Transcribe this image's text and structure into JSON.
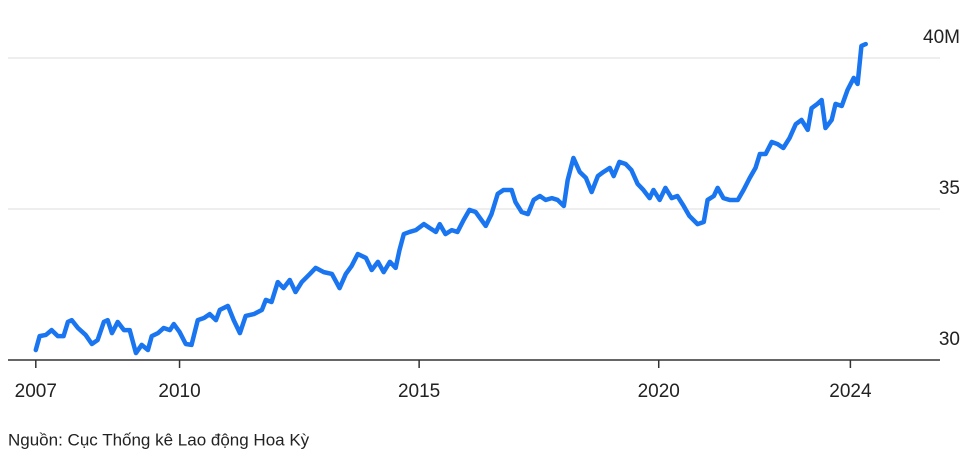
{
  "chart_data": {
    "type": "line",
    "source": "Nguồn: Cục Thống kê Lao động Hoa Kỳ",
    "xlim": [
      2006.42,
      2025.87
    ],
    "xticks": [
      2007,
      2010,
      2015,
      2020,
      2024
    ],
    "ylim": [
      30,
      41
    ],
    "yticks": [
      30,
      35,
      {
        "value": 40,
        "label": "40M"
      }
    ],
    "grid": true,
    "series": [
      {
        "color": "#1a75f0",
        "x": [
          2007.0,
          2007.08,
          2007.21,
          2007.33,
          2007.46,
          2007.58,
          2007.67,
          2007.75,
          2007.88,
          2008.04,
          2008.17,
          2008.29,
          2008.42,
          2008.5,
          2008.59,
          2008.71,
          2008.84,
          2008.96,
          2009.09,
          2009.21,
          2009.34,
          2009.42,
          2009.55,
          2009.67,
          2009.8,
          2009.88,
          2010.0,
          2010.13,
          2010.25,
          2010.38,
          2010.51,
          2010.63,
          2010.76,
          2010.84,
          2011.01,
          2011.13,
          2011.26,
          2011.38,
          2011.55,
          2011.72,
          2011.8,
          2011.92,
          2012.05,
          2012.17,
          2012.3,
          2012.42,
          2012.55,
          2012.72,
          2012.84,
          2013.01,
          2013.18,
          2013.34,
          2013.47,
          2013.59,
          2013.72,
          2013.89,
          2014.01,
          2014.14,
          2014.26,
          2014.39,
          2014.51,
          2014.59,
          2014.68,
          2014.8,
          2014.93,
          2015.1,
          2015.22,
          2015.35,
          2015.43,
          2015.55,
          2015.68,
          2015.8,
          2015.93,
          2016.05,
          2016.18,
          2016.39,
          2016.51,
          2016.64,
          2016.76,
          2016.93,
          2017.01,
          2017.14,
          2017.27,
          2017.39,
          2017.52,
          2017.64,
          2017.77,
          2017.89,
          2018.02,
          2018.1,
          2018.22,
          2018.35,
          2018.48,
          2018.6,
          2018.73,
          2018.85,
          2018.98,
          2019.06,
          2019.18,
          2019.31,
          2019.43,
          2019.56,
          2019.68,
          2019.81,
          2019.89,
          2020.02,
          2020.14,
          2020.27,
          2020.39,
          2020.52,
          2020.64,
          2020.81,
          2020.94,
          2021.02,
          2021.15,
          2021.23,
          2021.35,
          2021.48,
          2021.65,
          2021.77,
          2021.9,
          2022.02,
          2022.11,
          2022.23,
          2022.36,
          2022.48,
          2022.6,
          2022.73,
          2022.86,
          2022.98,
          2023.11,
          2023.19,
          2023.31,
          2023.4,
          2023.48,
          2023.61,
          2023.69,
          2023.82,
          2023.94,
          2024.07,
          2024.15,
          2024.23,
          2024.32
        ],
        "values": [
          30.33,
          30.79,
          30.83,
          30.99,
          30.79,
          30.79,
          31.26,
          31.32,
          31.06,
          30.83,
          30.53,
          30.66,
          31.26,
          31.32,
          30.89,
          31.26,
          30.99,
          30.99,
          30.23,
          30.5,
          30.33,
          30.79,
          30.89,
          31.06,
          30.99,
          31.19,
          30.93,
          30.53,
          30.5,
          31.32,
          31.39,
          31.52,
          31.32,
          31.66,
          31.79,
          31.32,
          30.89,
          31.46,
          31.52,
          31.66,
          31.99,
          31.92,
          32.58,
          32.38,
          32.65,
          32.25,
          32.58,
          32.85,
          33.05,
          32.91,
          32.85,
          32.38,
          32.85,
          33.11,
          33.51,
          33.38,
          32.98,
          33.25,
          32.91,
          33.25,
          33.05,
          33.64,
          34.17,
          34.24,
          34.3,
          34.5,
          34.37,
          34.24,
          34.5,
          34.17,
          34.3,
          34.24,
          34.64,
          34.97,
          34.9,
          34.44,
          34.83,
          35.5,
          35.63,
          35.63,
          35.23,
          34.9,
          34.83,
          35.3,
          35.43,
          35.3,
          35.36,
          35.3,
          35.1,
          35.96,
          36.69,
          36.23,
          36.03,
          35.56,
          36.09,
          36.23,
          36.36,
          36.09,
          36.56,
          36.49,
          36.29,
          35.83,
          35.63,
          35.36,
          35.63,
          35.3,
          35.7,
          35.36,
          35.43,
          35.1,
          34.77,
          34.5,
          34.57,
          35.3,
          35.43,
          35.7,
          35.36,
          35.3,
          35.3,
          35.63,
          36.03,
          36.36,
          36.82,
          36.82,
          37.22,
          37.15,
          37.02,
          37.35,
          37.81,
          37.95,
          37.62,
          38.34,
          38.48,
          38.61,
          37.68,
          37.95,
          38.48,
          38.41,
          38.94,
          39.34,
          39.14,
          40.4,
          40.46
        ]
      }
    ]
  }
}
